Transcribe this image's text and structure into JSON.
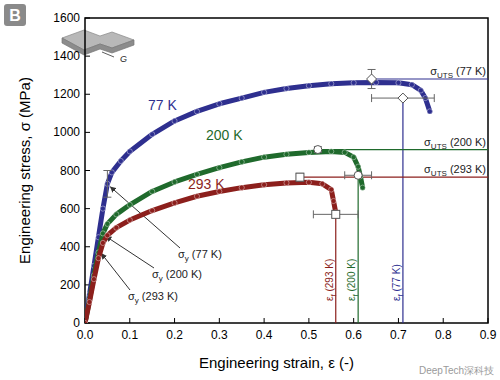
{
  "chart_data": {
    "type": "line",
    "panel_label": "B",
    "inset_label": "G",
    "watermark": "DeepTech深科技",
    "x_label": "Engineering strain, ε (-)",
    "y_label": "Engineering stress, σ (MPa)",
    "xlim": [
      0,
      0.9
    ],
    "ylim": [
      0,
      1600
    ],
    "xticks": [
      {
        "value": 0,
        "label": "0.0"
      },
      0.1,
      0.2,
      0.3,
      0.4,
      0.5,
      0.6,
      0.7,
      0.8,
      0.9
    ],
    "yticks": [
      0,
      200,
      400,
      600,
      800,
      1000,
      1200,
      1400,
      1600
    ],
    "grid": false,
    "series": [
      {
        "name": "77 K",
        "color": "#2e2f8f",
        "marker": "diamond",
        "line_style": "solid",
        "x": [
          0,
          0.01,
          0.02,
          0.03,
          0.04,
          0.05,
          0.06,
          0.08,
          0.1,
          0.15,
          0.2,
          0.25,
          0.3,
          0.35,
          0.4,
          0.45,
          0.5,
          0.55,
          0.6,
          0.65,
          0.7,
          0.73,
          0.75,
          0.76,
          0.77
        ],
        "values": [
          0,
          150,
          300,
          450,
          600,
          730,
          790,
          850,
          900,
          990,
          1060,
          1110,
          1150,
          1180,
          1210,
          1230,
          1245,
          1255,
          1260,
          1262,
          1260,
          1250,
          1220,
          1180,
          1110
        ],
        "yield": {
          "label": "σy (77 K)",
          "x": 0.05,
          "y": 730,
          "y_err": 70
        },
        "uts": {
          "label": "σUTS (77 K)",
          "x": 0.64,
          "y": 1280,
          "y_err": 50
        },
        "fracture": {
          "label": "εf (77 K)",
          "x": 0.71,
          "y": 1180,
          "x_err": 0.07
        }
      },
      {
        "name": "200 K",
        "color": "#1f6a2c",
        "marker": "circle",
        "line_style": "solid",
        "x": [
          0,
          0.01,
          0.02,
          0.03,
          0.04,
          0.05,
          0.07,
          0.1,
          0.15,
          0.2,
          0.25,
          0.3,
          0.35,
          0.4,
          0.45,
          0.5,
          0.55,
          0.58,
          0.6,
          0.61,
          0.615,
          0.62
        ],
        "values": [
          0,
          120,
          250,
          370,
          470,
          520,
          570,
          620,
          690,
          740,
          780,
          815,
          845,
          870,
          885,
          895,
          900,
          895,
          870,
          820,
          770,
          710
        ],
        "yield": {
          "label": "σy (200 K)",
          "x": 0.04,
          "y": 470
        },
        "uts": {
          "label": "σUTS (200 K)",
          "x": 0.52,
          "y": 910,
          "y_err": 15
        },
        "fracture": {
          "label": "εf (200 K)",
          "x": 0.61,
          "y": 775,
          "x_err": 0.03
        }
      },
      {
        "name": "293 K",
        "color": "#8c1f1c",
        "marker": "square",
        "line_style": "solid",
        "x": [
          0,
          0.01,
          0.02,
          0.03,
          0.04,
          0.05,
          0.07,
          0.1,
          0.15,
          0.2,
          0.25,
          0.3,
          0.35,
          0.4,
          0.45,
          0.5,
          0.53,
          0.55,
          0.555,
          0.56
        ],
        "values": [
          0,
          110,
          230,
          340,
          420,
          460,
          500,
          540,
          590,
          630,
          665,
          690,
          710,
          725,
          735,
          738,
          730,
          700,
          640,
          580
        ],
        "yield": {
          "label": "σy (293 K)",
          "x": 0.03,
          "y": 380
        },
        "uts": {
          "label": "σUTS (293 K)",
          "x": 0.48,
          "y": 765,
          "y_err": 20
        },
        "fracture": {
          "label": "εf (293 K)",
          "x": 0.56,
          "y": 570,
          "x_err": 0.05
        }
      }
    ]
  }
}
